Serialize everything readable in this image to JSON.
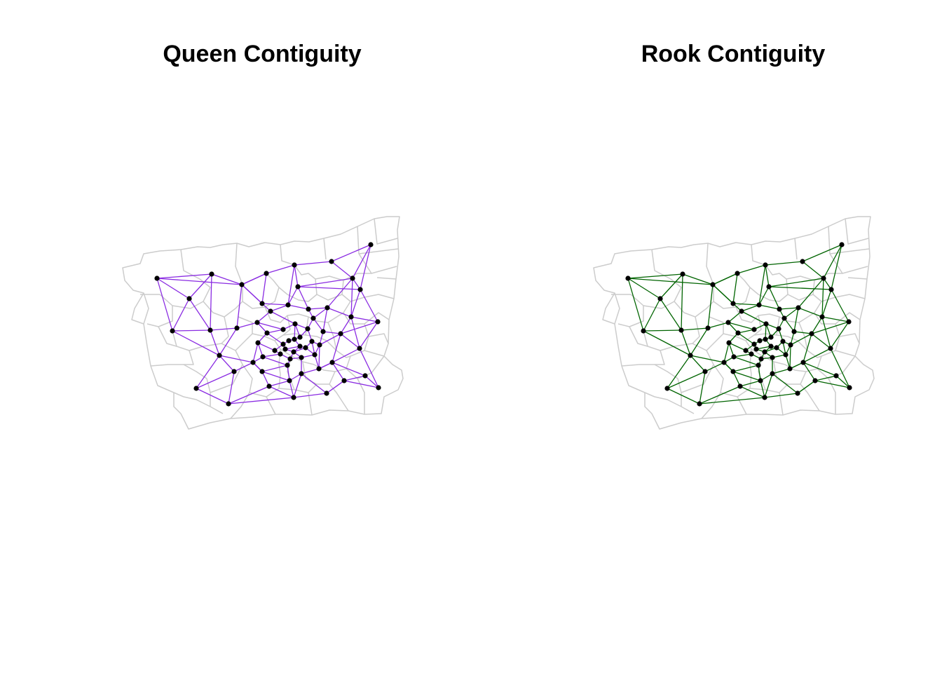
{
  "panels": [
    {
      "title": "Queen Contiguity",
      "link_color": "#8A2BE2"
    },
    {
      "title": "Rook Contiguity",
      "link_color": "#006400"
    }
  ],
  "colors": {
    "boundary": "#cccccc",
    "node": "#000000",
    "background": "#ffffff"
  }
}
